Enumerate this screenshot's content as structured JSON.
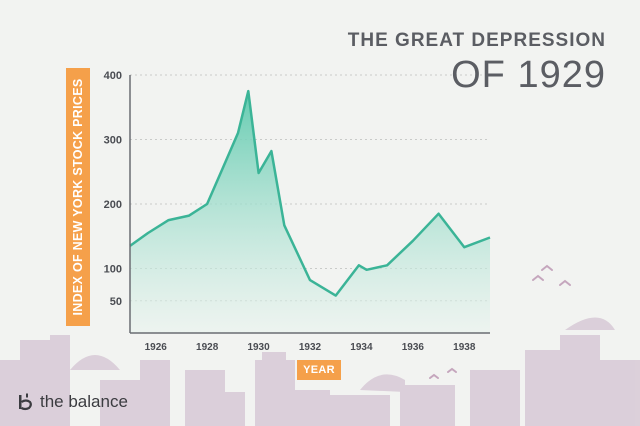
{
  "header": {
    "title_line1": "THE GREAT DEPRESSION",
    "title_line2": "OF 1929"
  },
  "brand": {
    "name": "the balance",
    "icon": "balance-logo-icon"
  },
  "colors": {
    "area_fill_top": "#5cc9ad",
    "area_fill_bottom": "#e8f4ee",
    "line": "#3bb497",
    "label_box": "#f5a04a",
    "axis": "#6a6c72",
    "title": "#5b5d63",
    "city": "#d8c9d6",
    "birds": "#c5a6bd"
  },
  "chart_data": {
    "type": "area",
    "title": "",
    "xlabel": "YEAR",
    "ylabel": "INDEX OF NEW YORK STOCK PRICES",
    "xlim": [
      1925,
      1939
    ],
    "ylim": [
      0,
      400
    ],
    "x_ticks": [
      "1926",
      "1928",
      "1930",
      "1932",
      "1934",
      "1936",
      "1938"
    ],
    "x_tick_values": [
      1926,
      1928,
      1930,
      1932,
      1934,
      1936,
      1938
    ],
    "y_ticks": [
      "400",
      "300",
      "200",
      "100",
      "50"
    ],
    "y_tick_values": [
      400,
      300,
      200,
      100,
      50
    ],
    "grid": true,
    "series": [
      {
        "x": [
          1925,
          1925.7,
          1926.5,
          1927.3,
          1928,
          1928.6,
          1929.2,
          1929.6,
          1930,
          1930.5,
          1931,
          1932,
          1933,
          1933.9,
          1934.2,
          1935,
          1936,
          1937,
          1938,
          1939
        ],
        "y": [
          135,
          155,
          175,
          182,
          200,
          255,
          310,
          375,
          248,
          282,
          167,
          82,
          58,
          105,
          98,
          105,
          143,
          185,
          133,
          148
        ]
      }
    ]
  }
}
